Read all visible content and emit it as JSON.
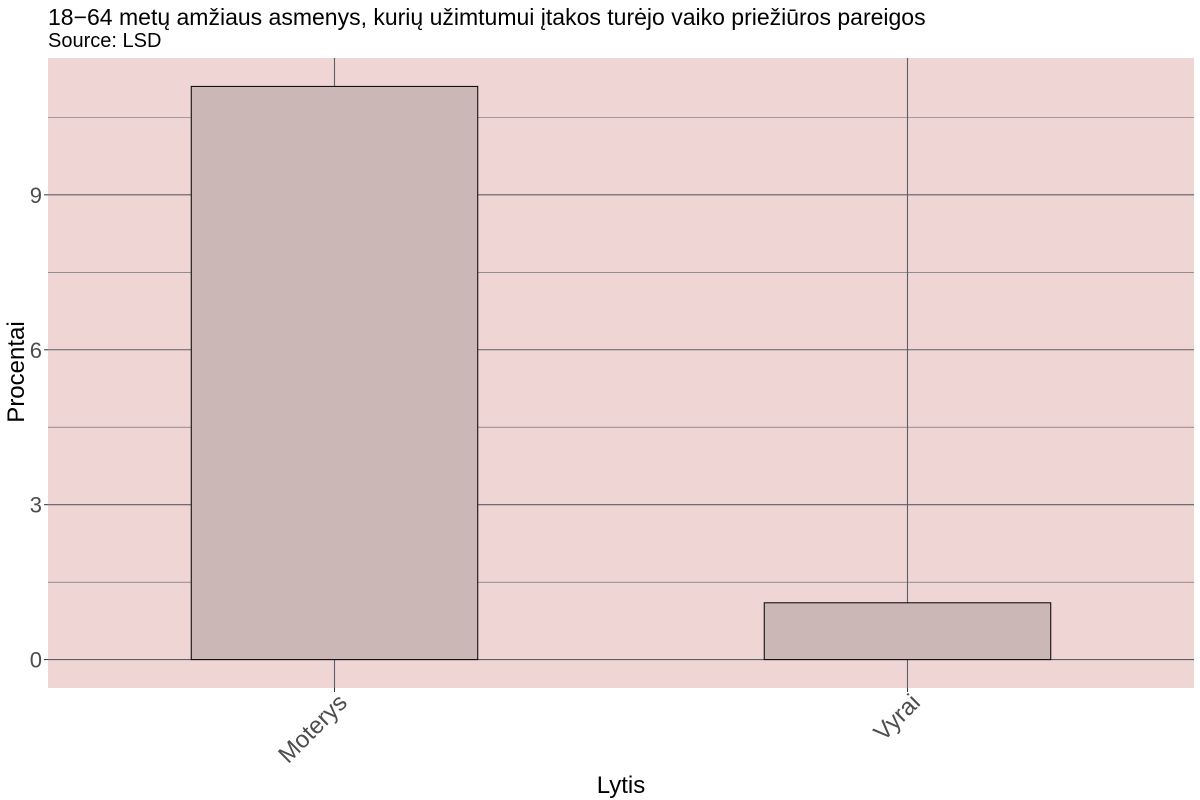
{
  "chart_data": {
    "type": "bar",
    "title": "18−64 metų amžiaus asmenys, kurių užimtumui įtakos turėjo vaiko priežiūros pareigos",
    "subtitle": "Source: LSD",
    "xlabel": "Lytis",
    "ylabel": "Procentai",
    "categories": [
      "Moterys",
      "Vyrai"
    ],
    "values": [
      11.1,
      1.1
    ],
    "ylim": [
      -0.55,
      11.65
    ],
    "yticks": [
      0,
      3,
      6,
      9
    ],
    "yticks_labels": [
      "0",
      "3",
      "6",
      "9"
    ],
    "grid": true,
    "colors": {
      "panel_background": "#efd5d3",
      "bar_fill": "#cbb7b6",
      "bar_stroke": "#000000",
      "grid": "#5a5f6b"
    }
  }
}
